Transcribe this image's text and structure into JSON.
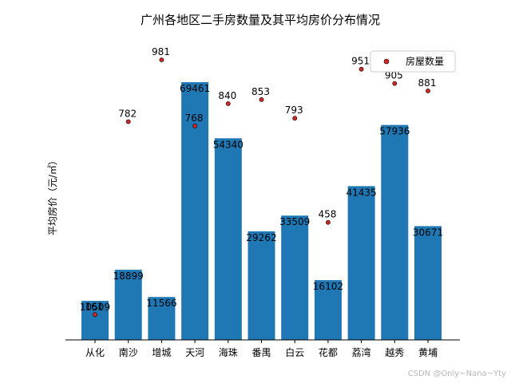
{
  "chart_data": {
    "type": "bar",
    "title": "广州各地区二手房数量及其平均房价分布情况",
    "xlabel": "",
    "ylabel": "平均房价（元/㎡）",
    "categories": [
      "从化",
      "南沙",
      "增城",
      "天河",
      "海珠",
      "番禺",
      "白云",
      "花都",
      "荔湾",
      "越秀",
      "黄埔"
    ],
    "series": [
      {
        "name": "平均房价",
        "kind": "bar",
        "color": "#1f77b4",
        "values": [
          10509,
          18899,
          11566,
          69461,
          54340,
          29262,
          33509,
          16102,
          41435,
          57936,
          30671
        ]
      },
      {
        "name": "房屋数量",
        "kind": "scatter",
        "color": "#d62728",
        "values": [
          161,
          782,
          981,
          768,
          840,
          853,
          793,
          458,
          951,
          905,
          881
        ]
      }
    ],
    "legend": {
      "entries": [
        "房屋数量"
      ],
      "position": "top-right"
    },
    "ylim_bar": [
      0,
      75000
    ]
  },
  "watermark": "CSDN @Only~Nana~Yty"
}
